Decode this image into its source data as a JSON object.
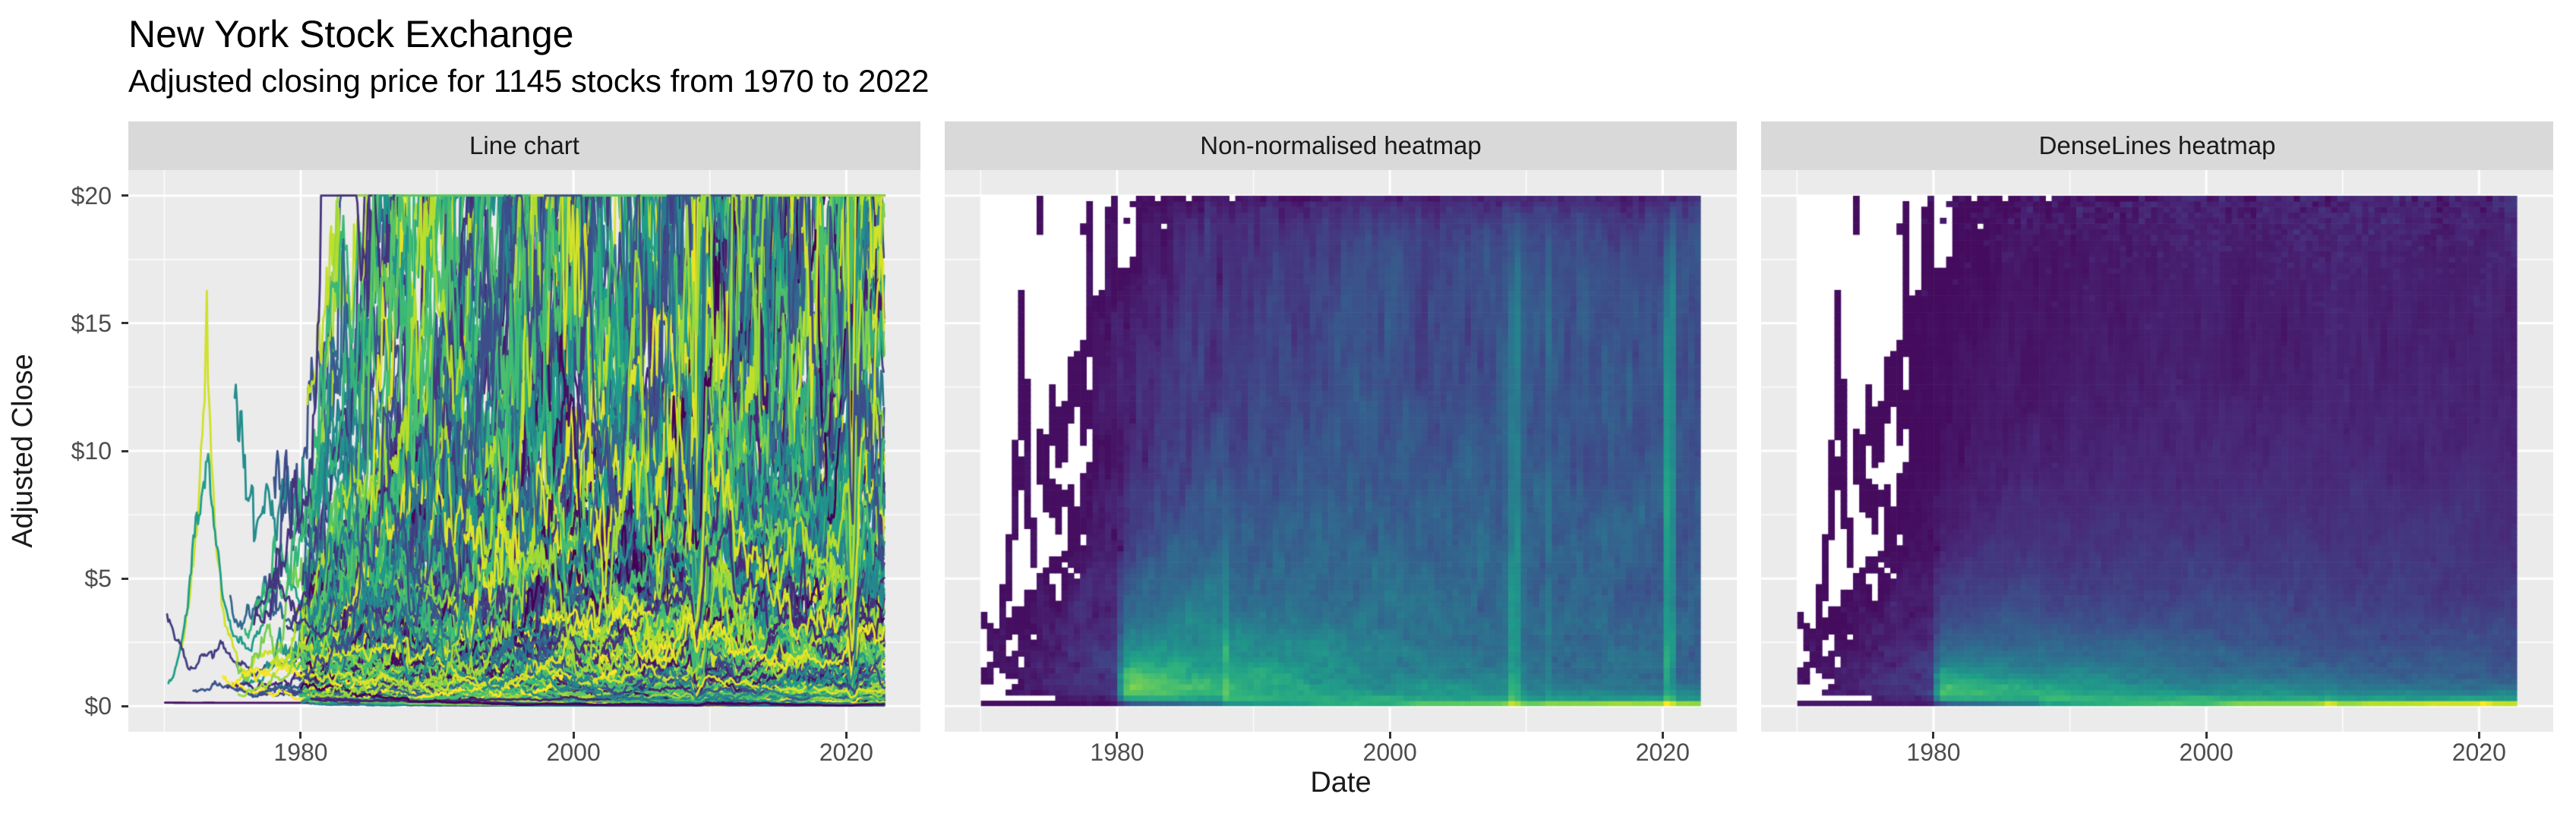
{
  "header": {
    "title": "New York Stock Exchange",
    "subtitle": "Adjusted closing price for 1145 stocks from 1970 to 2022"
  },
  "chart_data": {
    "type": "faceted: line + heatmap + heatmap",
    "title": "New York Stock Exchange",
    "subtitle": "Adjusted closing price for 1145 stocks from 1970 to 2022",
    "n_stocks": 1145,
    "facets": [
      {
        "label": "Line chart",
        "kind": "line"
      },
      {
        "label": "Non-normalised heatmap",
        "kind": "heatmap-count"
      },
      {
        "label": "DenseLines heatmap",
        "kind": "heatmap-denselines"
      }
    ],
    "x": {
      "label": "Date",
      "domain": [
        1970,
        2022.8
      ],
      "ticks": [
        1980,
        2000,
        2020
      ],
      "minor_ticks": [
        1970,
        1990,
        2010
      ]
    },
    "y": {
      "label": "Adjusted Close",
      "domain": [
        0,
        20
      ],
      "ticks": [
        0,
        5,
        10,
        15,
        20
      ],
      "tick_labels": [
        "$0",
        "$5",
        "$10",
        "$15",
        "$20"
      ],
      "minor_ticks": [
        2.5,
        7.5,
        12.5,
        17.5
      ]
    },
    "events": [
      {
        "year": 2008.8,
        "label": "high-density vertical streak (2008-09 crash)"
      },
      {
        "year": 2020.2,
        "label": "high-density vertical streak (2020 crash)"
      }
    ],
    "notable": {
      "data_wall_year": 1980,
      "clip_price": 20,
      "pre_1980_coverage": "sparse jagged coverage; empty cells shown white",
      "denselines_feature": "bright low-price density band rising toward 2022"
    },
    "palette": {
      "name": "viridis",
      "stops": [
        "#440154",
        "#482878",
        "#3e4a89",
        "#31688e",
        "#26828e",
        "#1f9e89",
        "#35b779",
        "#6dcd59",
        "#b4de2c",
        "#fde725"
      ]
    },
    "colors": {
      "panel_bg": "#ebebeb",
      "strip_bg": "#d9d9d9",
      "grid": "#ffffff",
      "no_data": "#ffffff",
      "tick_text": "#4d4d4d",
      "tick_mark": "#333333",
      "text": "#1a1a1a"
    }
  }
}
